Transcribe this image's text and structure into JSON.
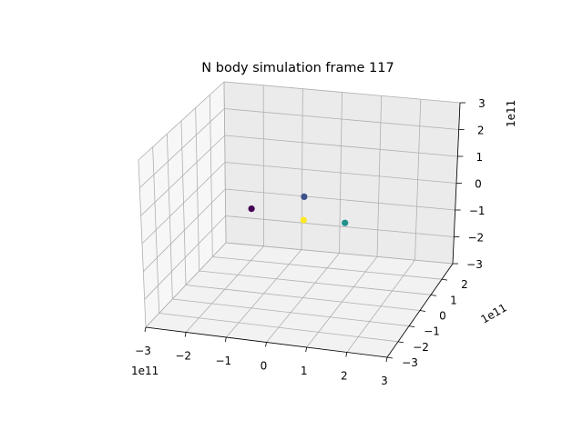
{
  "chart_data": {
    "type": "scatter",
    "projection": "3d",
    "title": "N body simulation frame 117",
    "xlabel": "",
    "ylabel": "",
    "zlabel": "",
    "x_offset_text": "1e11",
    "y_offset_text": "1e11",
    "z_offset_text": "1e11",
    "xlim": [
      -3,
      3
    ],
    "ylim": [
      -3,
      3
    ],
    "zlim": [
      -3,
      3
    ],
    "xticks": [
      "−3",
      "−2",
      "−1",
      "0",
      "1",
      "2",
      "3"
    ],
    "yticks": [
      "−3",
      "−2",
      "−1",
      "0",
      "1",
      "2"
    ],
    "zticks": [
      "−3",
      "−2",
      "−1",
      "0",
      "1",
      "2",
      "3"
    ],
    "grid": true,
    "legend": "none",
    "pane_color": "#f2f2f2",
    "grid_color": "#b0b0b0",
    "points": [
      {
        "x": -1.5,
        "y": 0.6,
        "z": -0.3,
        "color": "#440154"
      },
      {
        "x": -0.3,
        "y": 1.0,
        "z": 0.1,
        "color": "#3b528b"
      },
      {
        "x": 0.0,
        "y": 0.0,
        "z": -0.2,
        "color": "#fde725"
      },
      {
        "x": 0.8,
        "y": 0.8,
        "z": -0.6,
        "color": "#21918c"
      }
    ]
  }
}
